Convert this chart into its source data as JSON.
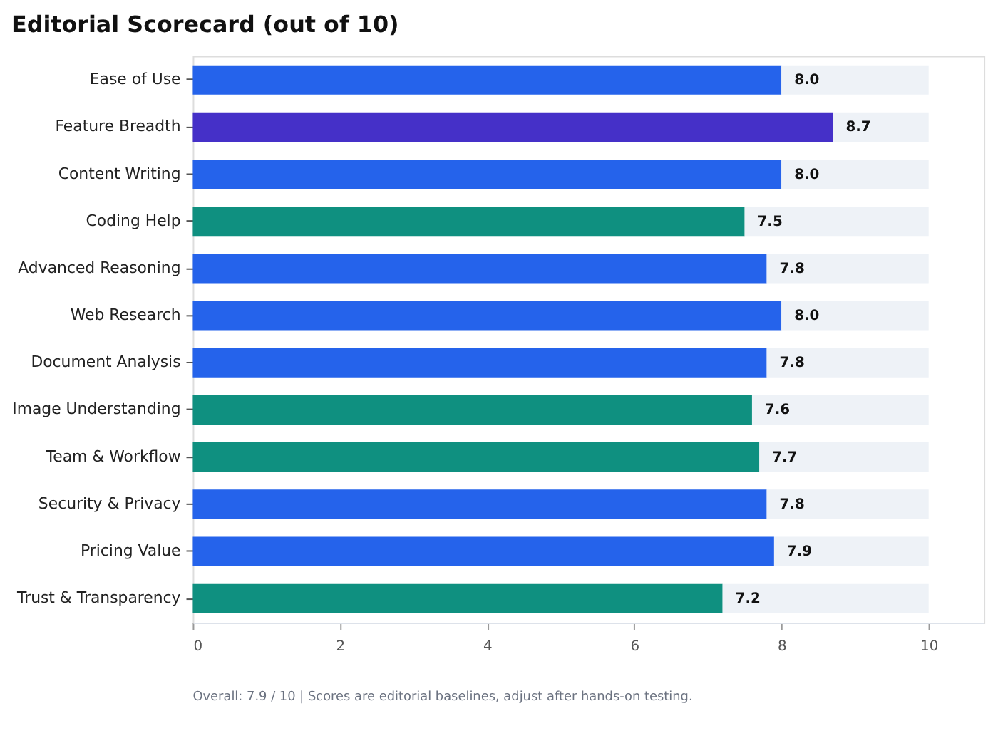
{
  "chart_data": {
    "type": "bar",
    "orientation": "horizontal",
    "stacked": true,
    "title": "Editorial Scorecard  (out of 10)",
    "categories": [
      "Ease of Use",
      "Feature Breadth",
      "Content Writing",
      "Coding Help",
      "Advanced Reasoning",
      "Web Research",
      "Document Analysis",
      "Image Understanding",
      "Team & Workflow",
      "Security & Privacy",
      "Pricing Value",
      "Trust & Transparency"
    ],
    "series": [
      {
        "values": [
          8.0,
          8.7,
          8.0,
          7.5,
          7.8,
          8.0,
          7.8,
          7.6,
          7.7,
          7.8,
          7.9,
          7.2
        ],
        "colors": [
          "#2563eb",
          "#4530c8",
          "#2563eb",
          "#0f9080",
          "#2563eb",
          "#2563eb",
          "#2563eb",
          "#0f9080",
          "#0f9080",
          "#2563eb",
          "#2563eb",
          "#0f9080"
        ],
        "value_labels": [
          "8.0",
          "8.7",
          "8.0",
          "7.5",
          "7.8",
          "8.0",
          "7.8",
          "7.6",
          "7.7",
          "7.8",
          "7.9",
          "7.2"
        ]
      },
      {
        "color": "#eef2f7",
        "values": [
          2.0,
          1.3,
          2.0,
          2.5,
          2.2,
          2.0,
          2.2,
          2.4,
          2.3,
          2.2,
          2.1,
          2.8
        ]
      }
    ],
    "xlim": [
      0,
      10.75
    ],
    "xticks": [
      0,
      2,
      4,
      6,
      8,
      10
    ],
    "grid": false,
    "annotations": [
      "Overall: 7.9 / 10   |   Scores are editorial baselines, adjust after hands-on testing."
    ]
  }
}
